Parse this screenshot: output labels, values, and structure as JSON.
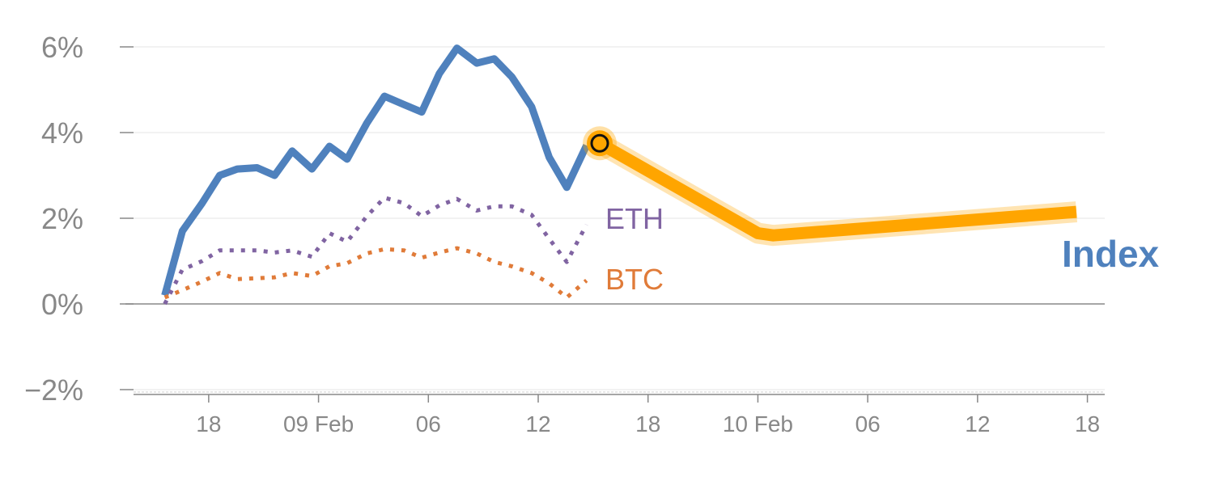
{
  "chart_data": {
    "type": "line",
    "title": "",
    "xlabel": "",
    "ylabel": "",
    "ylim": [
      -2,
      6
    ],
    "y_ticks": [
      {
        "value": 6,
        "label": "6%"
      },
      {
        "value": 4,
        "label": "4%"
      },
      {
        "value": 2,
        "label": "2%"
      },
      {
        "value": 0,
        "label": "0%"
      },
      {
        "value": -2,
        "label": "−2%"
      }
    ],
    "x_range": [
      0,
      42
    ],
    "x_ticks": [
      {
        "value": 2.5,
        "label": "18"
      },
      {
        "value": 7.5,
        "label": "09 Feb"
      },
      {
        "value": 12.5,
        "label": "06"
      },
      {
        "value": 17.5,
        "label": "12"
      },
      {
        "value": 22.5,
        "label": "18"
      },
      {
        "value": 27.5,
        "label": "10 Feb"
      },
      {
        "value": 32.5,
        "label": "06"
      },
      {
        "value": 37.5,
        "label": "12"
      },
      {
        "value": 42.5,
        "label": "18"
      }
    ],
    "grid": true,
    "colors": {
      "index": "#4f81bd",
      "eth": "#8064a2",
      "btc": "#e07b39",
      "projection": "#ffa500",
      "grid": "#e6e6e6",
      "axis": "#888888",
      "zero": "#888888"
    },
    "series": [
      {
        "key": "index",
        "x": [
          0.5,
          1.3,
          2.2,
          3.0,
          3.8,
          4.7,
          5.5,
          6.3,
          7.2,
          8.0,
          8.8,
          9.7,
          10.5,
          11.4,
          12.2,
          13.0,
          13.8,
          14.7,
          15.5,
          16.3,
          17.2,
          18.0,
          18.8,
          19.7
        ],
        "values": [
          0.2,
          1.7,
          2.35,
          3.0,
          3.15,
          3.18,
          3.0,
          3.57,
          3.15,
          3.68,
          3.38,
          4.22,
          4.85,
          4.65,
          4.48,
          5.38,
          5.97,
          5.62,
          5.72,
          5.3,
          4.6,
          3.42,
          2.72,
          3.7
        ]
      },
      {
        "key": "eth",
        "name": "ETH",
        "x": [
          0.5,
          1.3,
          2.2,
          3.0,
          3.8,
          4.7,
          5.5,
          6.3,
          7.2,
          8.0,
          8.8,
          9.7,
          10.5,
          11.4,
          12.2,
          13.0,
          13.8,
          14.7,
          15.5,
          16.3,
          17.2,
          18.0,
          18.8,
          19.7
        ],
        "values": [
          0.0,
          0.8,
          1.0,
          1.25,
          1.25,
          1.25,
          1.2,
          1.25,
          1.1,
          1.65,
          1.45,
          2.05,
          2.48,
          2.35,
          2.05,
          2.3,
          2.45,
          2.18,
          2.28,
          2.28,
          2.08,
          1.52,
          0.98,
          1.85
        ]
      },
      {
        "key": "btc",
        "name": "BTC",
        "x": [
          0.5,
          1.3,
          2.2,
          3.0,
          3.8,
          4.7,
          5.5,
          6.3,
          7.2,
          8.0,
          8.8,
          9.7,
          10.5,
          11.4,
          12.2,
          13.0,
          13.8,
          14.7,
          15.5,
          16.3,
          17.2,
          18.0,
          18.8,
          19.7
        ],
        "values": [
          0.15,
          0.32,
          0.52,
          0.72,
          0.58,
          0.6,
          0.62,
          0.72,
          0.65,
          0.88,
          0.95,
          1.18,
          1.28,
          1.25,
          1.08,
          1.2,
          1.3,
          1.18,
          0.98,
          0.88,
          0.72,
          0.48,
          0.15,
          0.55
        ]
      }
    ],
    "projection": {
      "x": [
        20.3,
        27.5,
        28.2,
        42.0
      ],
      "values": [
        3.75,
        1.65,
        1.6,
        2.15
      ]
    },
    "marker": {
      "x": 20.3,
      "value": 3.75
    },
    "labels": {
      "index": "Index",
      "eth": "ETH",
      "btc": "BTC"
    }
  }
}
